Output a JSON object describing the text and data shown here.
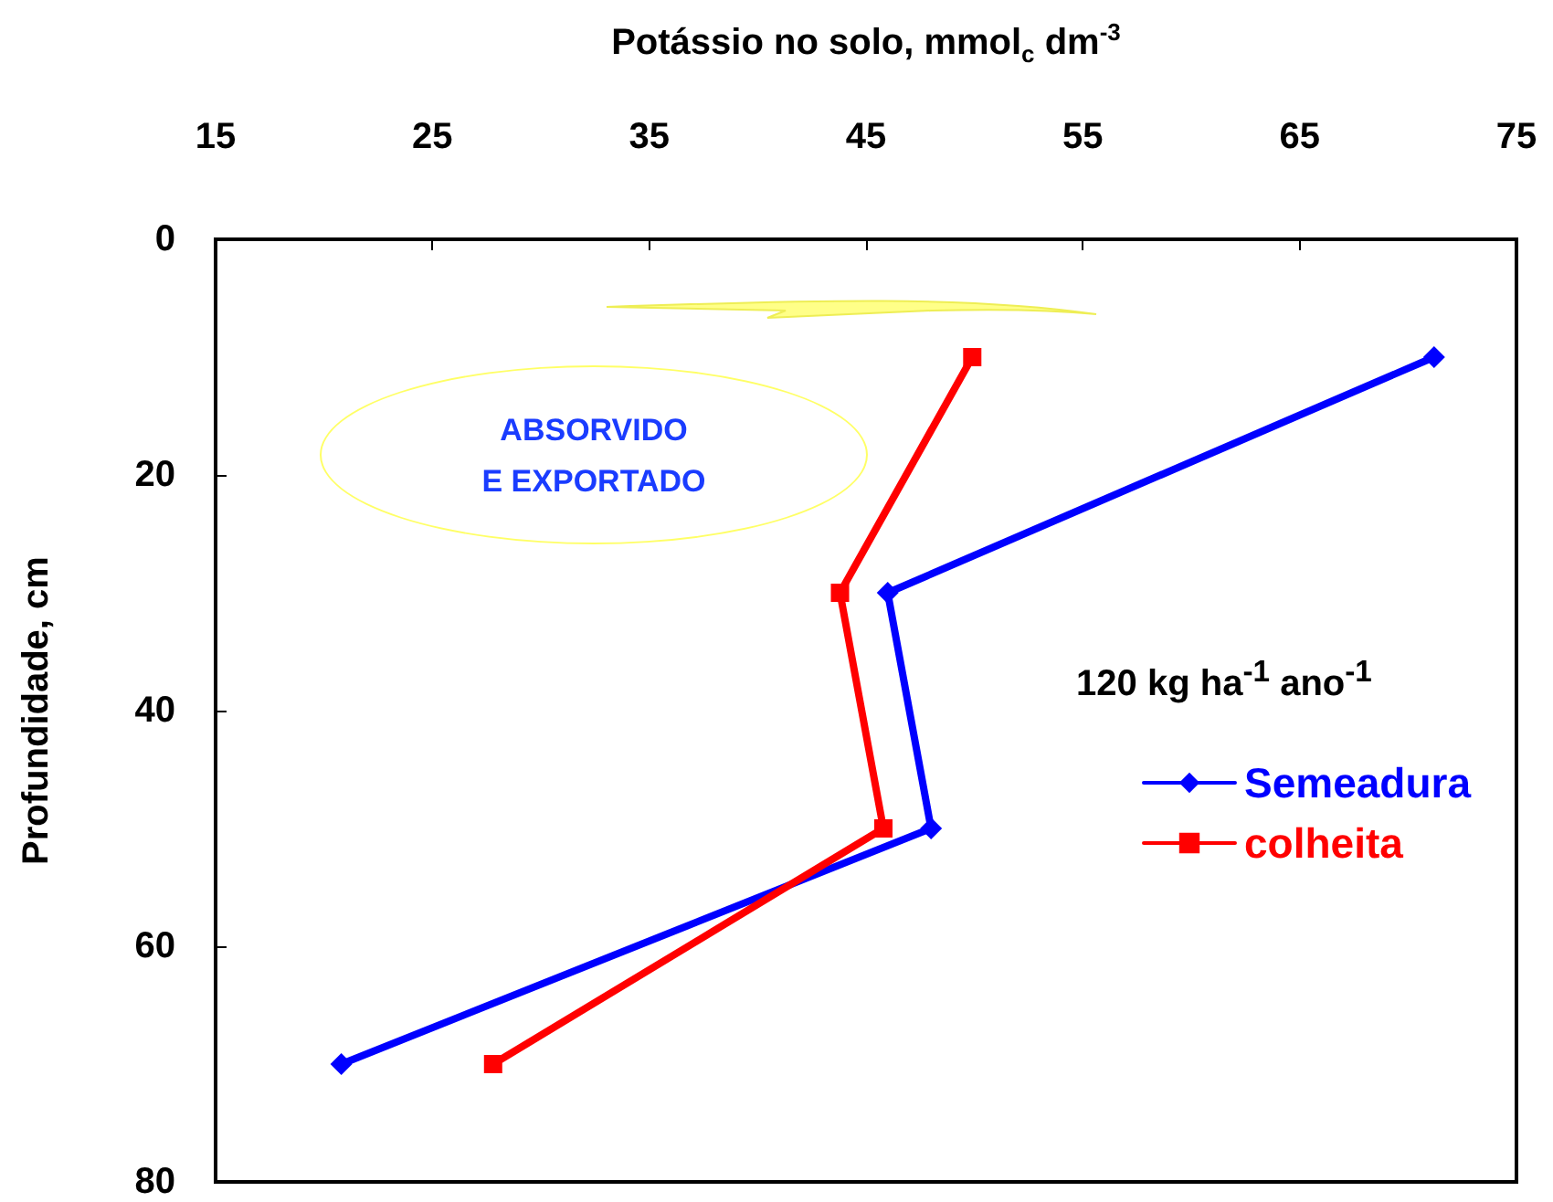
{
  "chart_data": {
    "type": "line",
    "xlabel": "Potássio no solo, mmol$_{c}$ dm$^{-3}$",
    "ylabel": "Profundidade, cm",
    "xlim": [
      15,
      75
    ],
    "xticks": [
      15,
      25,
      35,
      45,
      55,
      65,
      75
    ],
    "ylim": [
      80,
      0
    ],
    "yticks": [
      0,
      20,
      40,
      60,
      80
    ],
    "grid": false,
    "legend": "right",
    "line_style": "solid",
    "annotations": [
      "ABSORVIDO\nE EXPORTADO",
      "120 kg ha$^{-1}$ ano$^{-1}$"
    ],
    "series": [
      {
        "name": "Semeadura",
        "color": "#0000ff",
        "marker": "diamond",
        "x": [
          71.2,
          46.0,
          48.0,
          20.8
        ],
        "values": [
          10,
          30,
          50,
          70
        ]
      },
      {
        "name": "colheita",
        "color": "#ff0000",
        "marker": "square",
        "x": [
          49.9,
          43.8,
          45.8,
          27.8
        ],
        "values": [
          10,
          30,
          50,
          70
        ]
      }
    ]
  }
}
